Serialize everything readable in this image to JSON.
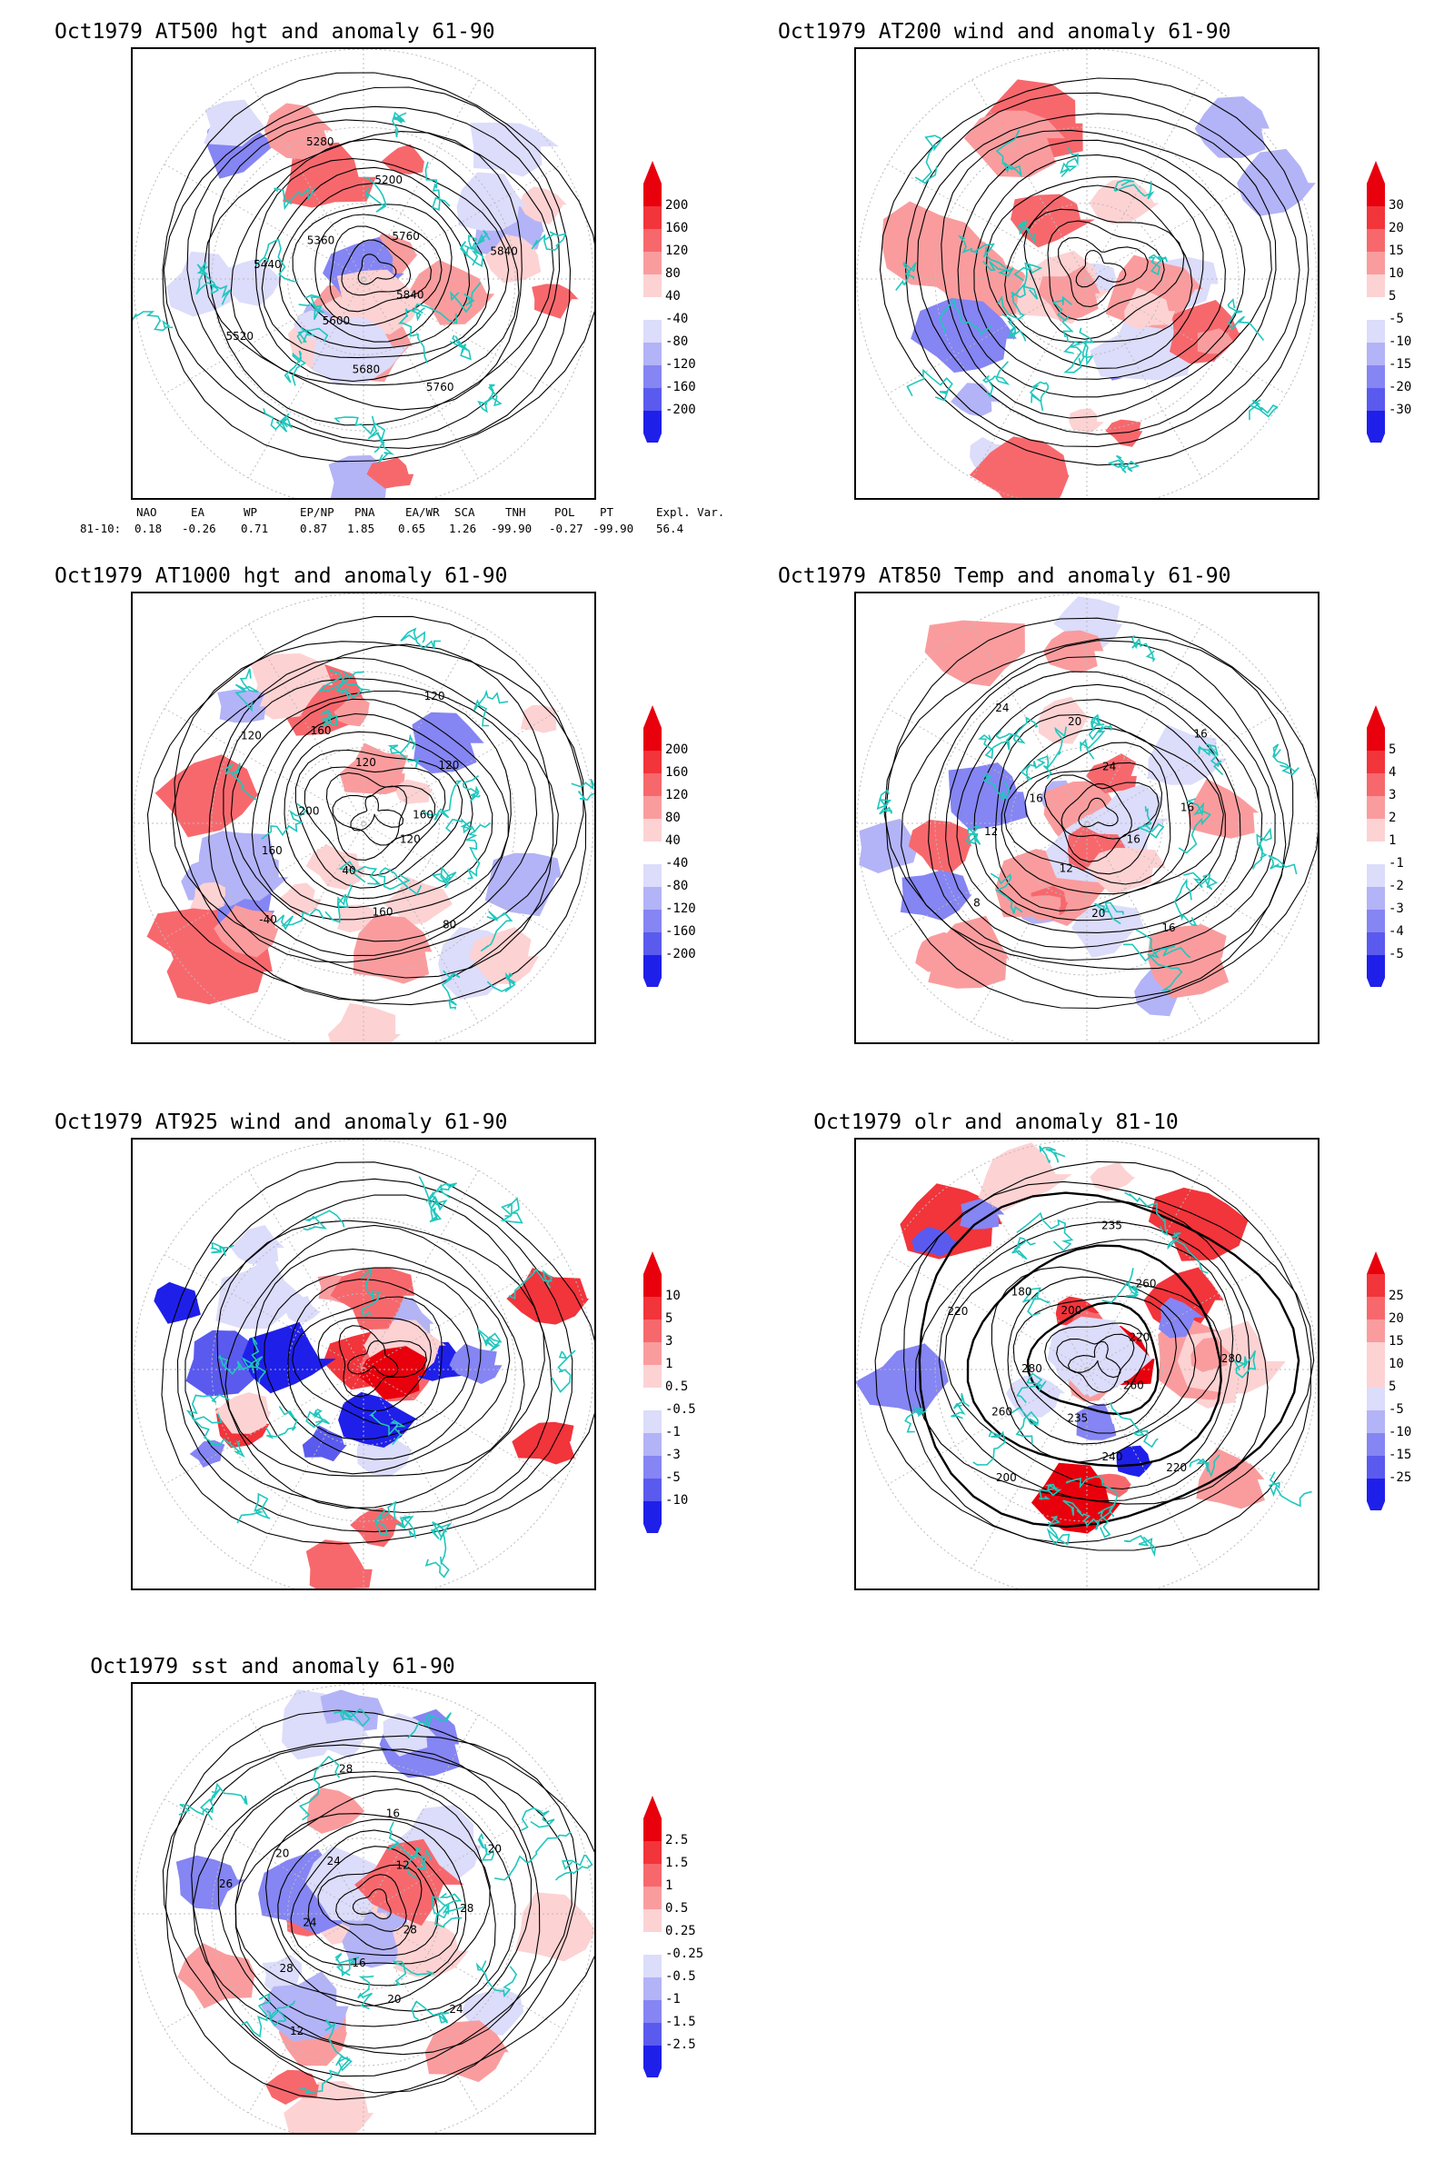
{
  "panels": [
    {
      "id": "at500",
      "title": "Oct1979 AT500 hgt and anomaly 61-90",
      "levels": [
        "200",
        "160",
        "120",
        "80",
        "40",
        "-40",
        "-80",
        "-120",
        "-160",
        "-200"
      ],
      "contour_labels": [
        "5840",
        "5760",
        "5680",
        "5600",
        "5520",
        "5440",
        "5360",
        "5280",
        "5200",
        "5760",
        "5840"
      ]
    },
    {
      "id": "at200",
      "title": "Oct1979 AT200 wind and anomaly 61-90",
      "levels": [
        "30",
        "20",
        "15",
        "10",
        "5",
        "-5",
        "-10",
        "-15",
        "-20",
        "-30"
      ],
      "contour_labels": []
    },
    {
      "id": "at1000",
      "title": "Oct1979 AT1000 hgt and anomaly 61-90",
      "levels": [
        "200",
        "160",
        "120",
        "80",
        "40",
        "-40",
        "-80",
        "-120",
        "-160",
        "-200"
      ],
      "contour_labels": [
        "120",
        "80",
        "160",
        "40",
        "-40",
        "160",
        "200",
        "120",
        "160",
        "120",
        "120",
        "120",
        "160"
      ]
    },
    {
      "id": "at850",
      "title": "Oct1979 AT850 Temp and anomaly 61-90",
      "levels": [
        "5",
        "4",
        "3",
        "2",
        "1",
        "-1",
        "-2",
        "-3",
        "-4",
        "-5"
      ],
      "contour_labels": [
        "16",
        "16",
        "20",
        "12",
        "8",
        "12",
        "16",
        "24",
        "20",
        "24",
        "16",
        "16"
      ]
    },
    {
      "id": "at925",
      "title": "Oct1979 AT925 wind and anomaly 61-90",
      "levels": [
        "10",
        "5",
        "3",
        "1",
        "0.5",
        "-0.5",
        "-1",
        "-3",
        "-5",
        "-10"
      ],
      "contour_labels": []
    },
    {
      "id": "olr",
      "title": "Oct1979 olr and anomaly 81-10",
      "levels": [
        "25",
        "20",
        "15",
        "10",
        "5",
        "-5",
        "-10",
        "-15",
        "-25"
      ],
      "contour_labels": [
        "260",
        "220",
        "240",
        "235",
        "200",
        "260",
        "280",
        "220",
        "180",
        "200",
        "235",
        "260",
        "220",
        "280"
      ]
    },
    {
      "id": "sst",
      "title": "Oct1979 sst and anomaly 61-90",
      "levels": [
        "2.5",
        "1.5",
        "1",
        "0.5",
        "0.25",
        "-0.25",
        "-0.5",
        "-1",
        "-1.5",
        "-2.5"
      ],
      "contour_labels": [
        "28",
        "24",
        "20",
        "16",
        "12",
        "28",
        "24",
        "26",
        "20",
        "24",
        "28",
        "16",
        "12",
        "20",
        "28"
      ]
    }
  ],
  "teleconnection": {
    "headers": [
      "NAO",
      "EA",
      "WP",
      "EP/NP",
      "PNA",
      "EA/WR",
      "SCA",
      "TNH",
      "POL",
      "PT",
      "Expl. Var."
    ],
    "row_label": "81-10:",
    "values": [
      "0.18",
      "-0.26",
      "0.71",
      "0.87",
      "1.85",
      "0.65",
      "1.26",
      "-99.90",
      "-0.27",
      "-99.90",
      "56.4"
    ]
  },
  "colors": {
    "coast": "#1fc7bd",
    "red_levels": [
      "#e8000d",
      "#f2343b",
      "#f7686d",
      "#fa9c9e",
      "#fdd2d3"
    ],
    "blue_levels": [
      "#dcdcfb",
      "#b3b3f7",
      "#8585f3",
      "#5a5aef",
      "#1f1fea"
    ]
  }
}
